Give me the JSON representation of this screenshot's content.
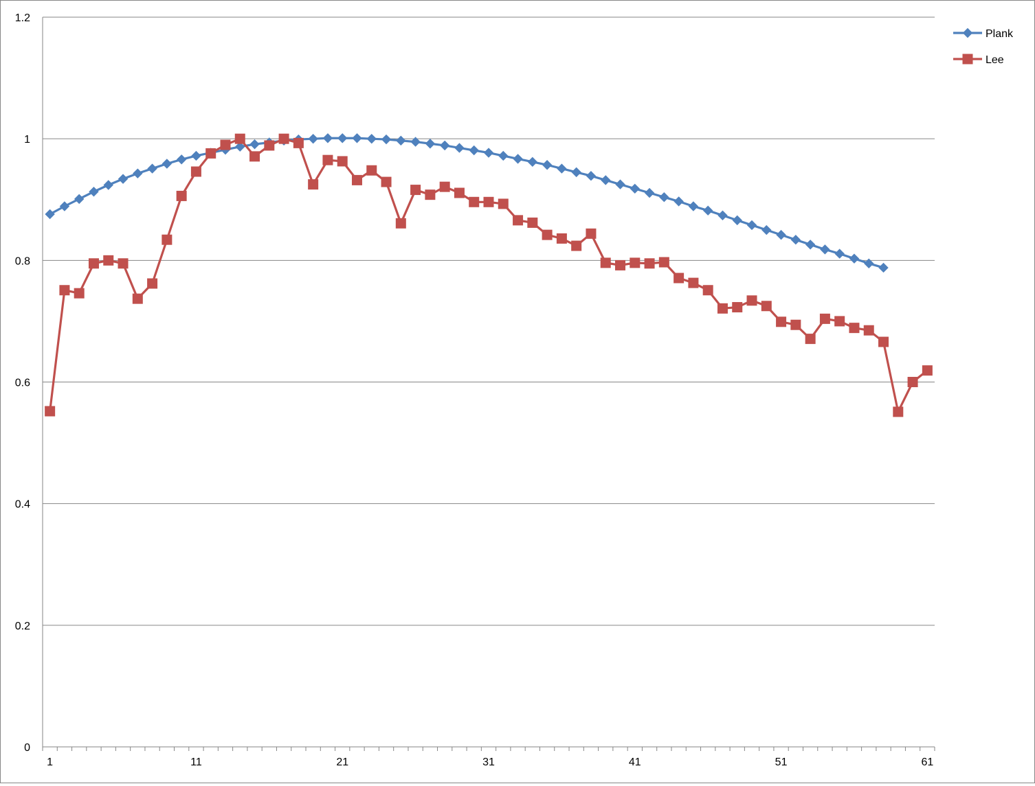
{
  "chart_data": {
    "type": "line",
    "title": "",
    "xlabel": "",
    "ylabel": "",
    "ylim": [
      0,
      1.2
    ],
    "y_ticks": [
      "0",
      "0.2",
      "0.4",
      "0.6",
      "0.8",
      "1",
      "1.2"
    ],
    "x_ticks": [
      "1",
      "11",
      "21",
      "31",
      "41",
      "51",
      "61"
    ],
    "grid": "horizontal",
    "legend_position": "top-right",
    "series": [
      {
        "name": "Plank",
        "color": "#4F81BD",
        "marker": "diamond",
        "values": [
          0.876,
          0.889,
          0.901,
          0.913,
          0.924,
          0.934,
          0.943,
          0.951,
          0.959,
          0.966,
          0.972,
          0.977,
          0.982,
          0.987,
          0.991,
          0.994,
          0.997,
          0.999,
          1.0,
          1.001,
          1.001,
          1.001,
          1.0,
          0.999,
          0.997,
          0.995,
          0.992,
          0.989,
          0.985,
          0.981,
          0.977,
          0.972,
          0.967,
          0.962,
          0.957,
          0.951,
          0.945,
          0.939,
          0.932,
          0.925,
          0.918,
          0.911,
          0.904,
          0.897,
          0.889,
          0.882,
          0.874,
          0.866,
          0.858,
          0.85,
          0.842,
          0.834,
          0.826,
          0.818,
          0.811,
          0.803,
          0.795,
          0.788
        ]
      },
      {
        "name": "Lee",
        "color": "#C0504D",
        "marker": "square",
        "values": [
          0.552,
          0.751,
          0.746,
          0.795,
          0.8,
          0.795,
          0.737,
          0.762,
          0.834,
          0.906,
          0.946,
          0.976,
          0.99,
          1.0,
          0.971,
          0.989,
          1.0,
          0.993,
          0.925,
          0.965,
          0.963,
          0.932,
          0.948,
          0.929,
          0.861,
          0.916,
          0.908,
          0.921,
          0.911,
          0.896,
          0.896,
          0.893,
          0.866,
          0.862,
          0.842,
          0.836,
          0.824,
          0.844,
          0.796,
          0.792,
          0.796,
          0.795,
          0.797,
          0.771,
          0.763,
          0.751,
          0.721,
          0.723,
          0.734,
          0.725,
          0.699,
          0.694,
          0.671,
          0.704,
          0.7,
          0.689,
          0.685,
          0.666,
          0.551,
          0.6,
          0.619
        ]
      }
    ]
  }
}
